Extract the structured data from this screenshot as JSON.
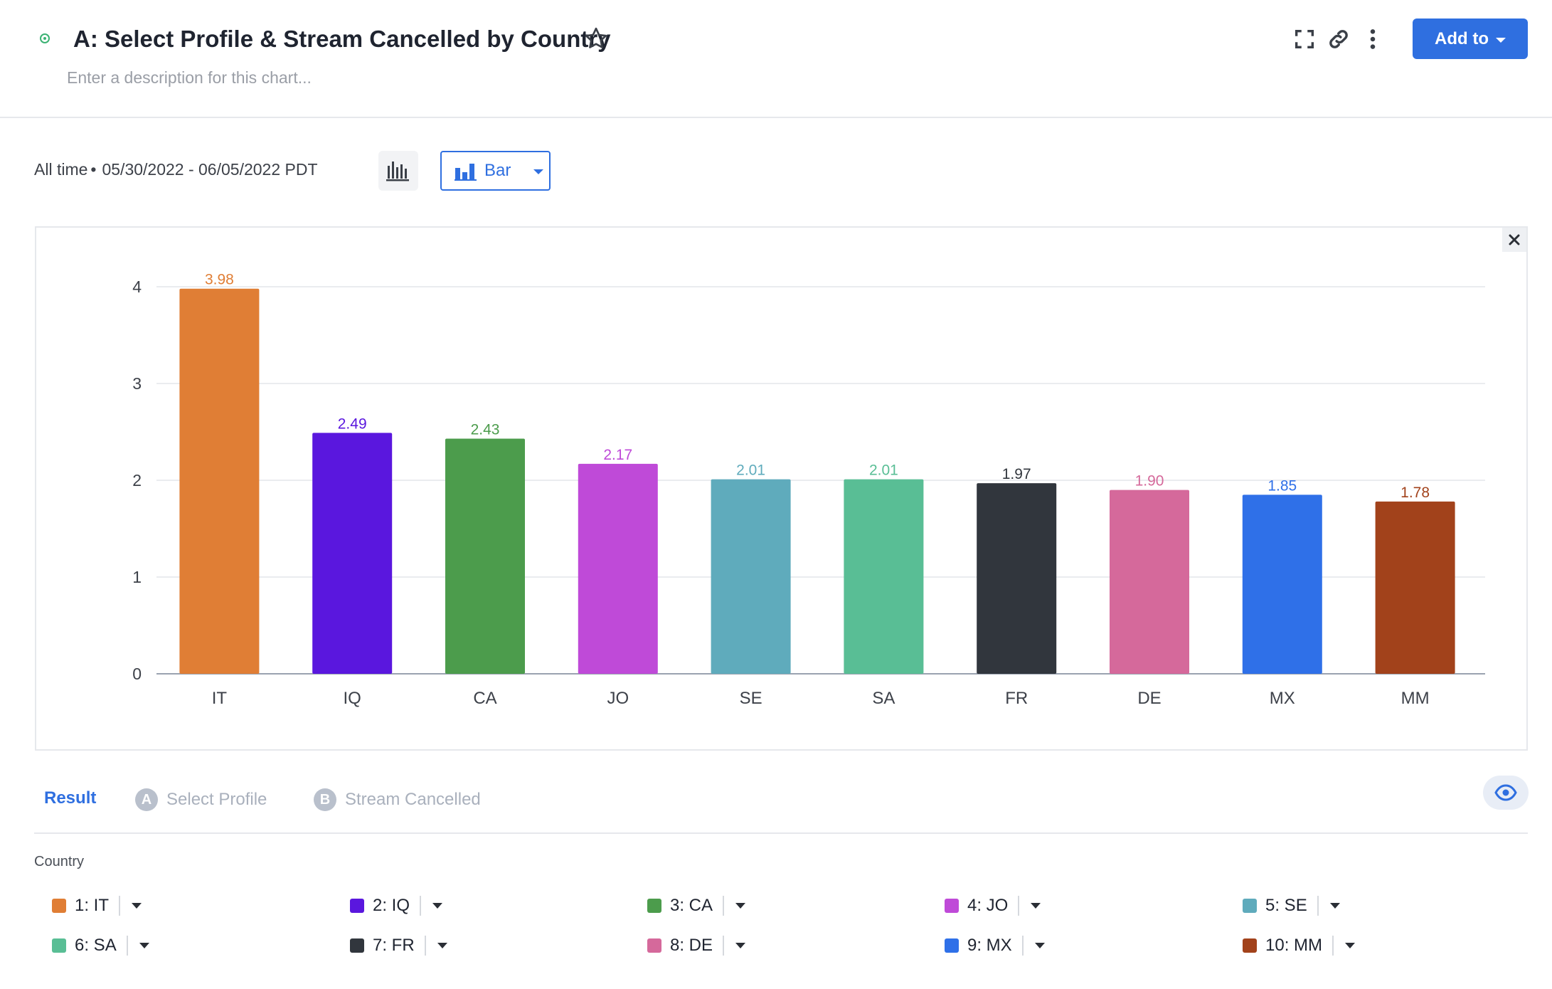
{
  "header": {
    "title": "A: Select Profile & Stream Cancelled by Country",
    "description_placeholder": "Enter a description for this chart...",
    "add_to_label": "Add to"
  },
  "toolbar": {
    "time_label": "All time",
    "date_range": "05/30/2022 - 06/05/2022 PDT",
    "chart_type_label": "Bar"
  },
  "tabs": {
    "result": "Result",
    "a_badge": "A",
    "a_label": "Select Profile",
    "b_badge": "B",
    "b_label": "Stream Cancelled"
  },
  "legend": {
    "title": "Country",
    "items": [
      {
        "label": "1: IT",
        "color": "#e07e35"
      },
      {
        "label": "2: IQ",
        "color": "#5a17de"
      },
      {
        "label": "3: CA",
        "color": "#4c9c4c"
      },
      {
        "label": "4: JO",
        "color": "#bf4ad8"
      },
      {
        "label": "5: SE",
        "color": "#5fabbc"
      },
      {
        "label": "6: SA",
        "color": "#59be95"
      },
      {
        "label": "7: FR",
        "color": "#31363d"
      },
      {
        "label": "8: DE",
        "color": "#d5699b"
      },
      {
        "label": "9: MX",
        "color": "#2f70e8"
      },
      {
        "label": "10: MM",
        "color": "#a2421b"
      }
    ]
  },
  "chart_data": {
    "type": "bar",
    "title": "",
    "xlabel": "",
    "ylabel": "",
    "categories": [
      "IT",
      "IQ",
      "CA",
      "JO",
      "SE",
      "SA",
      "FR",
      "DE",
      "MX",
      "MM"
    ],
    "values": [
      3.98,
      2.49,
      2.43,
      2.17,
      2.01,
      2.01,
      1.97,
      1.9,
      1.85,
      1.78
    ],
    "data_labels": [
      "3.98",
      "2.49",
      "2.43",
      "2.17",
      "2.01",
      "2.01",
      "1.97",
      "1.90",
      "1.85",
      "1.78"
    ],
    "colors": [
      "#e07e35",
      "#5a17de",
      "#4c9c4c",
      "#bf4ad8",
      "#5fabbc",
      "#59be95",
      "#31363d",
      "#d5699b",
      "#2f70e8",
      "#a2421b"
    ],
    "ylim": [
      0,
      4
    ],
    "yticks": [
      "0",
      "1",
      "2",
      "3",
      "4"
    ],
    "grid": true,
    "legend": "bottom"
  }
}
